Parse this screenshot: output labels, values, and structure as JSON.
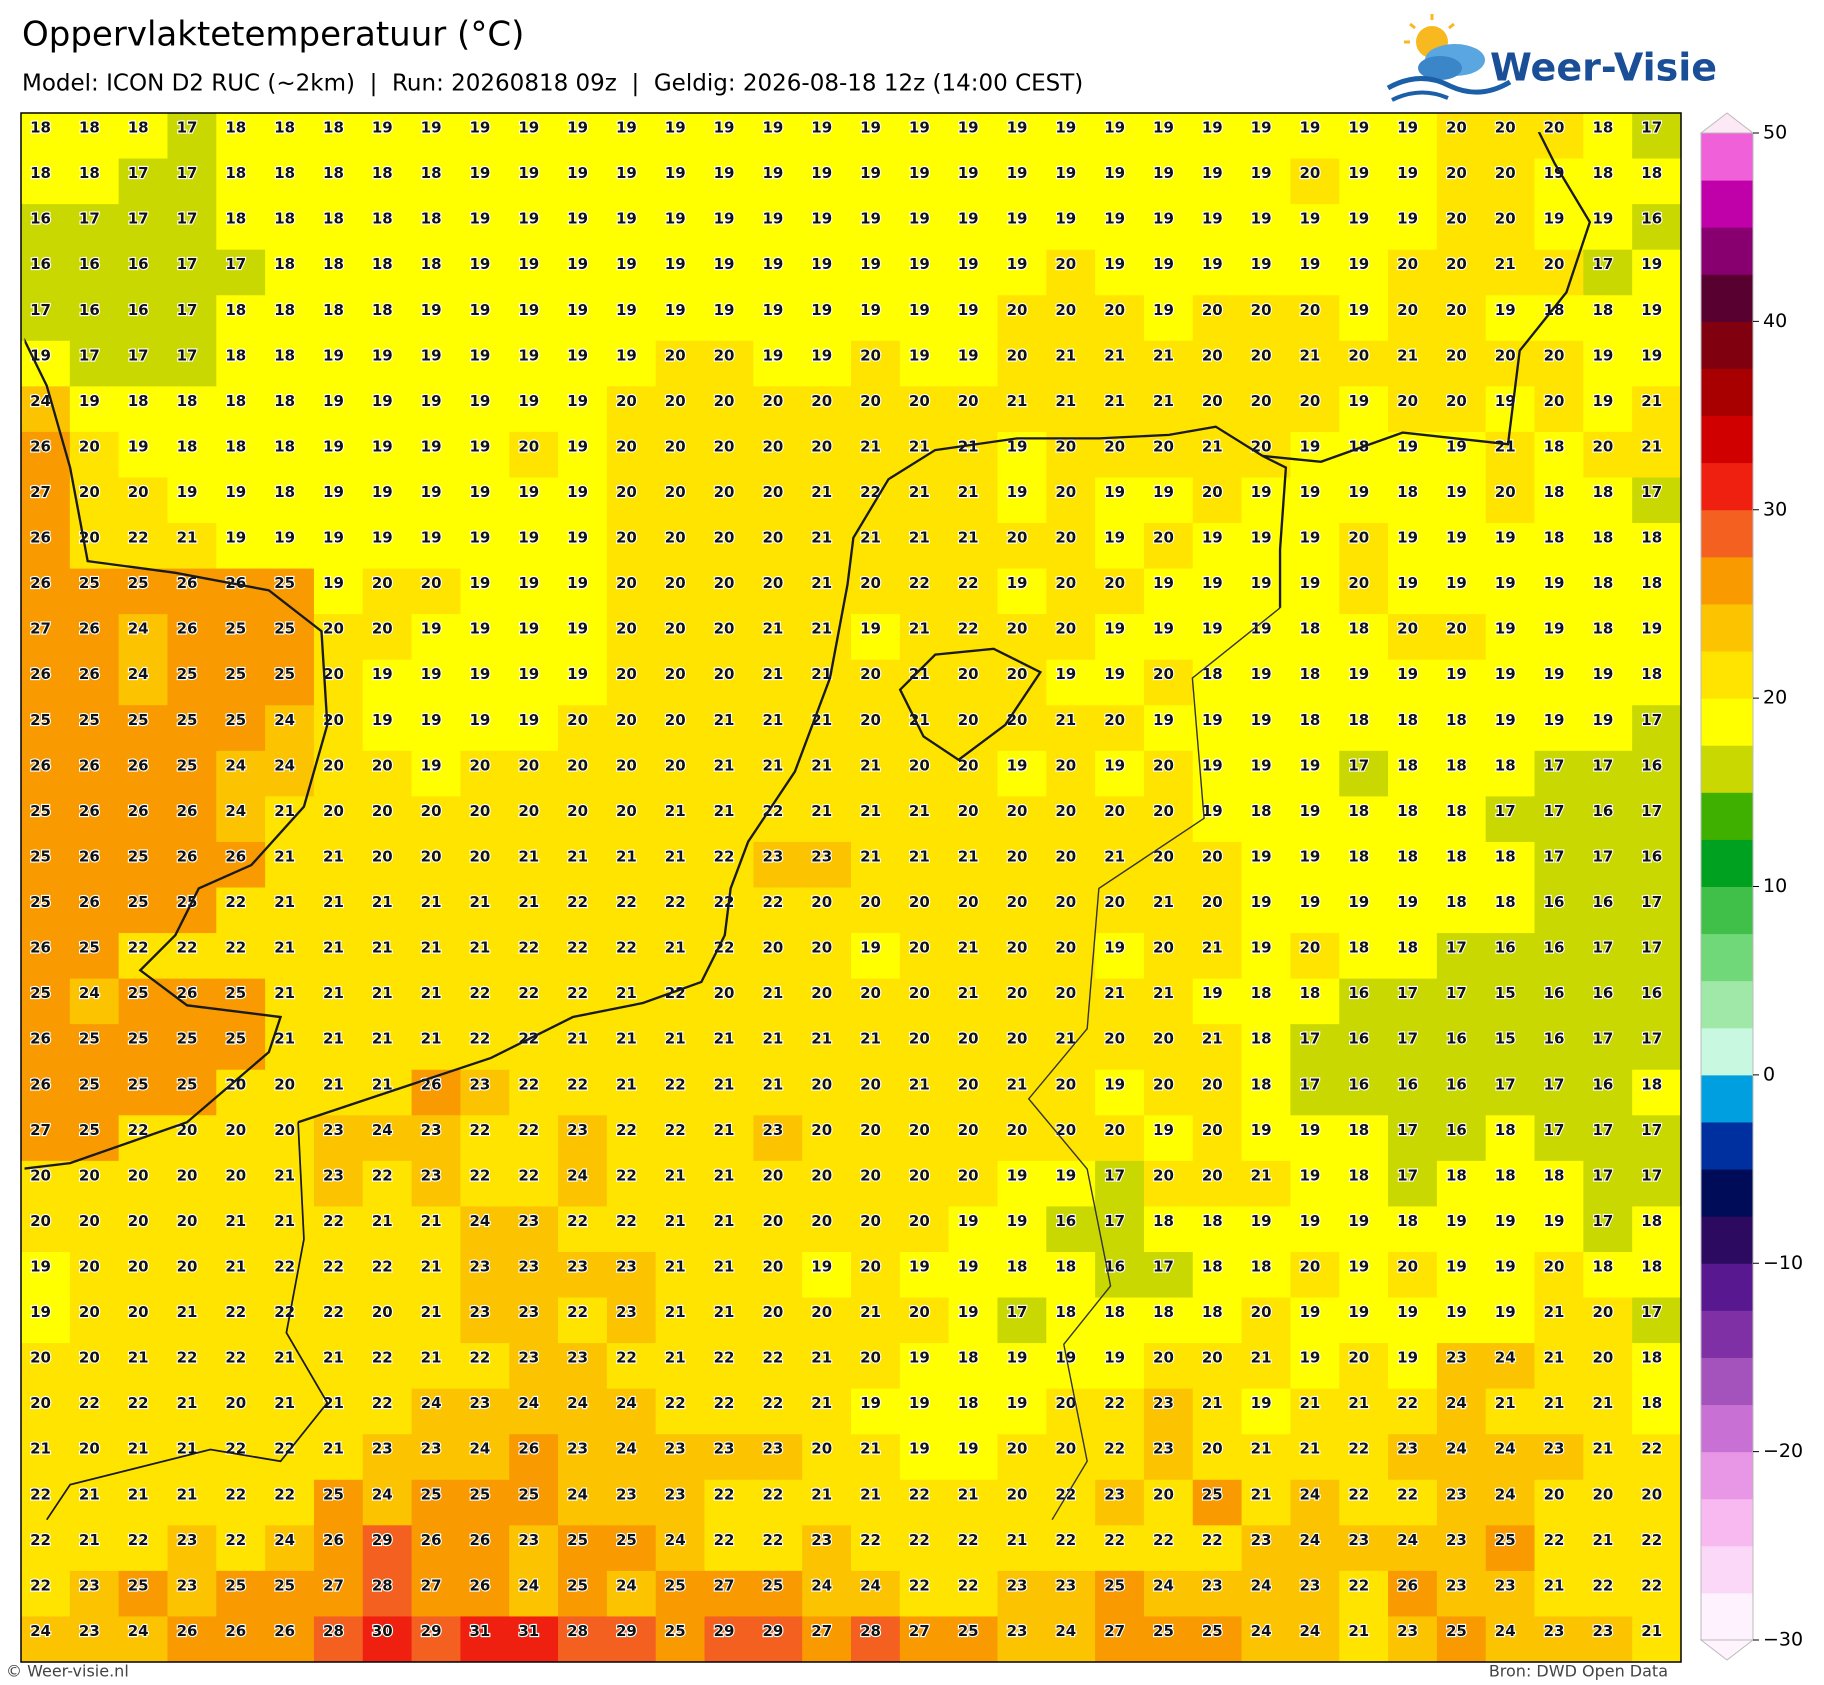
{
  "title": "Oppervlaktetemperatuur (°C)",
  "subtitle": "Model: ICON D2 RUC (~2km)  |  Run: 20260818 09z  |  Geldig: 2026-08-18 12z (14:00 CEST)",
  "logo": "Weer-Visie",
  "footer_left": "© Weer-visie.nl",
  "footer_right": "Bron: DWD Open Data",
  "grid": {
    "rows": [
      [
        18,
        18,
        18,
        17,
        18,
        18,
        18,
        19,
        19,
        19,
        19,
        19,
        19,
        19,
        19,
        19,
        19,
        19,
        19,
        19,
        19,
        19,
        19,
        19,
        19,
        19,
        19,
        19,
        19,
        20,
        20,
        20,
        18,
        17
      ],
      [
        18,
        18,
        17,
        17,
        18,
        18,
        18,
        18,
        18,
        19,
        19,
        19,
        19,
        19,
        19,
        19,
        19,
        19,
        19,
        19,
        19,
        19,
        19,
        19,
        19,
        19,
        20,
        19,
        19,
        20,
        20,
        19,
        18,
        18
      ],
      [
        16,
        17,
        17,
        17,
        18,
        18,
        18,
        18,
        18,
        19,
        19,
        19,
        19,
        19,
        19,
        19,
        19,
        19,
        19,
        19,
        19,
        19,
        19,
        19,
        19,
        19,
        19,
        19,
        19,
        20,
        20,
        19,
        19,
        16
      ],
      [
        16,
        16,
        16,
        17,
        17,
        18,
        18,
        18,
        18,
        19,
        19,
        19,
        19,
        19,
        19,
        19,
        19,
        19,
        19,
        19,
        19,
        20,
        19,
        19,
        19,
        19,
        19,
        19,
        20,
        20,
        21,
        20,
        17,
        19
      ],
      [
        17,
        16,
        16,
        17,
        18,
        18,
        18,
        18,
        19,
        19,
        19,
        19,
        19,
        19,
        19,
        19,
        19,
        19,
        19,
        19,
        20,
        20,
        20,
        19,
        20,
        20,
        20,
        19,
        20,
        20,
        19,
        18,
        18,
        19
      ],
      [
        19,
        17,
        17,
        17,
        18,
        18,
        19,
        19,
        19,
        19,
        19,
        19,
        19,
        20,
        20,
        19,
        19,
        20,
        19,
        19,
        20,
        21,
        21,
        21,
        20,
        20,
        21,
        20,
        21,
        20,
        20,
        20,
        19,
        19
      ],
      [
        24,
        19,
        18,
        18,
        18,
        18,
        19,
        19,
        19,
        19,
        19,
        19,
        20,
        20,
        20,
        20,
        20,
        20,
        20,
        20,
        21,
        21,
        21,
        21,
        20,
        20,
        20,
        19,
        20,
        20,
        19,
        20,
        19,
        21
      ],
      [
        26,
        20,
        19,
        18,
        18,
        18,
        19,
        19,
        19,
        19,
        20,
        19,
        20,
        20,
        20,
        20,
        20,
        21,
        21,
        21,
        19,
        20,
        20,
        20,
        21,
        20,
        19,
        18,
        19,
        19,
        21,
        18,
        20,
        21
      ],
      [
        27,
        20,
        20,
        19,
        19,
        18,
        19,
        19,
        19,
        19,
        19,
        19,
        20,
        20,
        20,
        20,
        21,
        22,
        21,
        21,
        19,
        20,
        19,
        19,
        20,
        19,
        19,
        19,
        18,
        19,
        20,
        18,
        18,
        17
      ],
      [
        26,
        20,
        22,
        21,
        19,
        19,
        19,
        19,
        19,
        19,
        19,
        19,
        20,
        20,
        20,
        20,
        21,
        21,
        21,
        21,
        20,
        20,
        19,
        20,
        19,
        19,
        19,
        20,
        19,
        19,
        19,
        18,
        18,
        18
      ],
      [
        26,
        25,
        25,
        26,
        26,
        25,
        19,
        20,
        20,
        19,
        19,
        19,
        20,
        20,
        20,
        20,
        21,
        20,
        22,
        22,
        19,
        20,
        20,
        19,
        19,
        19,
        19,
        20,
        19,
        19,
        19,
        19,
        18,
        18
      ],
      [
        27,
        26,
        24,
        26,
        25,
        25,
        20,
        20,
        19,
        19,
        19,
        19,
        20,
        20,
        20,
        21,
        21,
        19,
        21,
        22,
        20,
        20,
        19,
        19,
        19,
        19,
        18,
        18,
        20,
        20,
        19,
        19,
        18,
        19
      ],
      [
        26,
        26,
        24,
        25,
        25,
        25,
        20,
        19,
        19,
        19,
        19,
        19,
        20,
        20,
        20,
        21,
        21,
        20,
        21,
        20,
        20,
        19,
        19,
        20,
        18,
        19,
        18,
        19,
        19,
        19,
        19,
        19,
        19,
        18
      ],
      [
        25,
        25,
        25,
        25,
        25,
        24,
        20,
        19,
        19,
        19,
        19,
        20,
        20,
        20,
        21,
        21,
        21,
        20,
        21,
        20,
        20,
        21,
        20,
        19,
        19,
        19,
        18,
        18,
        18,
        18,
        19,
        19,
        19,
        17
      ],
      [
        26,
        26,
        26,
        25,
        24,
        24,
        20,
        20,
        19,
        20,
        20,
        20,
        20,
        20,
        21,
        21,
        21,
        21,
        20,
        20,
        19,
        20,
        19,
        20,
        19,
        19,
        19,
        17,
        18,
        18,
        18,
        17,
        17,
        16
      ],
      [
        25,
        26,
        26,
        26,
        24,
        21,
        20,
        20,
        20,
        20,
        20,
        20,
        20,
        21,
        21,
        22,
        21,
        21,
        21,
        20,
        20,
        20,
        20,
        20,
        19,
        18,
        19,
        18,
        18,
        18,
        17,
        17,
        16,
        17
      ],
      [
        25,
        26,
        25,
        26,
        26,
        21,
        21,
        20,
        20,
        20,
        21,
        21,
        21,
        21,
        22,
        23,
        23,
        21,
        21,
        21,
        20,
        20,
        21,
        20,
        20,
        19,
        19,
        18,
        18,
        18,
        18,
        17,
        17,
        16
      ],
      [
        25,
        26,
        25,
        25,
        22,
        21,
        21,
        21,
        21,
        21,
        21,
        22,
        22,
        22,
        22,
        22,
        20,
        20,
        20,
        20,
        20,
        20,
        20,
        21,
        20,
        19,
        19,
        19,
        19,
        18,
        18,
        16,
        16,
        17
      ],
      [
        26,
        25,
        22,
        22,
        22,
        21,
        21,
        21,
        21,
        21,
        22,
        22,
        22,
        21,
        22,
        20,
        20,
        19,
        20,
        21,
        20,
        20,
        19,
        20,
        21,
        19,
        20,
        18,
        18,
        17,
        16,
        16,
        17,
        17
      ],
      [
        25,
        24,
        25,
        26,
        25,
        21,
        21,
        21,
        21,
        22,
        22,
        22,
        21,
        22,
        20,
        21,
        20,
        20,
        20,
        21,
        20,
        20,
        21,
        21,
        19,
        18,
        18,
        16,
        17,
        17,
        15,
        16,
        16,
        16
      ],
      [
        26,
        25,
        25,
        25,
        25,
        21,
        21,
        21,
        21,
        22,
        22,
        21,
        21,
        21,
        21,
        21,
        21,
        21,
        20,
        20,
        20,
        21,
        20,
        20,
        21,
        18,
        17,
        16,
        17,
        16,
        15,
        16,
        17,
        17
      ],
      [
        26,
        25,
        25,
        25,
        20,
        20,
        21,
        21,
        26,
        23,
        22,
        22,
        21,
        22,
        21,
        21,
        20,
        20,
        21,
        20,
        21,
        20,
        19,
        20,
        20,
        18,
        17,
        16,
        16,
        16,
        17,
        17,
        16,
        18
      ],
      [
        27,
        25,
        22,
        20,
        20,
        20,
        23,
        24,
        23,
        22,
        22,
        23,
        22,
        22,
        21,
        23,
        20,
        20,
        20,
        20,
        20,
        20,
        20,
        19,
        20,
        19,
        19,
        18,
        17,
        16,
        18,
        17,
        17,
        17
      ],
      [
        20,
        20,
        20,
        20,
        20,
        21,
        23,
        22,
        23,
        22,
        22,
        24,
        22,
        21,
        21,
        20,
        20,
        20,
        20,
        20,
        19,
        19,
        17,
        20,
        20,
        21,
        19,
        18,
        17,
        18,
        18,
        18,
        17,
        17
      ],
      [
        20,
        20,
        20,
        20,
        21,
        21,
        22,
        21,
        21,
        24,
        23,
        22,
        22,
        21,
        21,
        20,
        20,
        20,
        20,
        19,
        19,
        16,
        17,
        18,
        18,
        19,
        19,
        19,
        18,
        19,
        19,
        19,
        17,
        18
      ],
      [
        19,
        20,
        20,
        20,
        21,
        22,
        22,
        22,
        21,
        23,
        23,
        23,
        23,
        21,
        21,
        20,
        19,
        20,
        19,
        19,
        18,
        18,
        16,
        17,
        18,
        18,
        20,
        19,
        20,
        19,
        19,
        20,
        18,
        18
      ],
      [
        19,
        20,
        20,
        21,
        22,
        22,
        22,
        20,
        21,
        23,
        23,
        22,
        23,
        21,
        21,
        20,
        20,
        21,
        20,
        19,
        17,
        18,
        18,
        18,
        18,
        20,
        19,
        19,
        19,
        19,
        19,
        21,
        20,
        17
      ],
      [
        20,
        20,
        21,
        22,
        22,
        21,
        21,
        22,
        21,
        22,
        23,
        23,
        22,
        21,
        22,
        22,
        21,
        20,
        19,
        18,
        19,
        19,
        19,
        20,
        20,
        21,
        19,
        20,
        19,
        23,
        24,
        21,
        20,
        18
      ],
      [
        20,
        22,
        22,
        21,
        20,
        21,
        21,
        22,
        24,
        23,
        24,
        24,
        24,
        22,
        22,
        22,
        21,
        19,
        19,
        18,
        19,
        20,
        22,
        23,
        21,
        19,
        21,
        21,
        22,
        24,
        21,
        21,
        21,
        18
      ],
      [
        21,
        20,
        21,
        21,
        22,
        22,
        21,
        23,
        23,
        24,
        26,
        23,
        24,
        23,
        23,
        23,
        20,
        21,
        19,
        19,
        20,
        20,
        22,
        23,
        20,
        21,
        21,
        22,
        23,
        24,
        24,
        23,
        21,
        22
      ],
      [
        22,
        21,
        21,
        21,
        22,
        22,
        25,
        24,
        25,
        25,
        25,
        24,
        23,
        23,
        22,
        22,
        21,
        21,
        22,
        21,
        20,
        22,
        23,
        20,
        25,
        21,
        24,
        22,
        22,
        23,
        24,
        20,
        20,
        20
      ],
      [
        22,
        21,
        22,
        23,
        22,
        24,
        26,
        29,
        26,
        26,
        23,
        25,
        25,
        24,
        22,
        22,
        23,
        22,
        22,
        22,
        21,
        22,
        22,
        22,
        22,
        23,
        24,
        23,
        24,
        23,
        25,
        22,
        21,
        22
      ],
      [
        22,
        23,
        25,
        23,
        25,
        25,
        27,
        28,
        27,
        26,
        24,
        25,
        24,
        25,
        27,
        25,
        24,
        24,
        22,
        22,
        23,
        23,
        25,
        24,
        23,
        24,
        23,
        22,
        26,
        23,
        23,
        21,
        22,
        22
      ],
      [
        24,
        23,
        24,
        26,
        26,
        26,
        28,
        30,
        29,
        31,
        31,
        28,
        29,
        25,
        29,
        29,
        27,
        28,
        27,
        25,
        23,
        24,
        27,
        25,
        25,
        24,
        24,
        21,
        23,
        25,
        24,
        23,
        23,
        21
      ]
    ]
  },
  "colorbar": {
    "lim": [
      -30,
      50
    ],
    "ticks": [
      {
        "value": -30,
        "label": "−30"
      },
      {
        "value": -20,
        "label": "−20"
      },
      {
        "value": -10,
        "label": "−10"
      },
      0,
      10,
      20,
      30,
      40,
      50
    ],
    "colors": [
      "#fdf2fd",
      "#fcd8f8",
      "#f8b8f0",
      "#e896e6",
      "#c870d4",
      "#a452bc",
      "#7e30a4",
      "#581890",
      "#2c0a60",
      "#000c58",
      "#0030a0",
      "#00a0e0",
      "#c8f8e0",
      "#a0e8a8",
      "#70d878",
      "#40c048",
      "#00a020",
      "#40b000",
      "#c8d800",
      "#ffff00",
      "#ffe400",
      "#fcc400",
      "#f89a00",
      "#f46020",
      "#f02010",
      "#d00000",
      "#a80000",
      "#800010",
      "#580030",
      "#880070",
      "#c000a8",
      "#f060d8"
    ]
  }
}
